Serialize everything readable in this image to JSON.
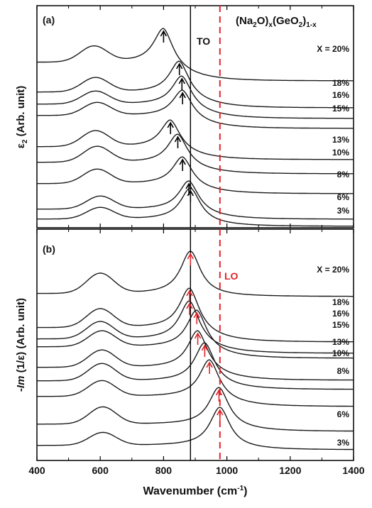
{
  "chart_data": [
    {
      "panel": "(a)",
      "type": "line",
      "title": "(Na2O)x(GeO2)1-x",
      "ylabel": "ε2 (Arb. unit)",
      "xlabel": "Wavenumber (cm-1)",
      "xlim": [
        400,
        1400
      ],
      "yticks": "none",
      "reference_lines": [
        {
          "label": "TO",
          "x": 885,
          "color": "#000000",
          "style": "solid"
        },
        {
          "label": "",
          "x": 978,
          "color": "#e0252b",
          "style": "dashed"
        }
      ],
      "series": [
        {
          "name": "X = 20%",
          "peak_x": 800,
          "shoulder_x": 580
        },
        {
          "name": "18%",
          "peak_x": 850,
          "shoulder_x": 585
        },
        {
          "name": "16%",
          "peak_x": 858,
          "shoulder_x": 585
        },
        {
          "name": "15%",
          "peak_x": 860,
          "shoulder_x": 590
        },
        {
          "name": "13%",
          "peak_x": 822,
          "shoulder_x": 585
        },
        {
          "name": "10%",
          "peak_x": 845,
          "shoulder_x": 590
        },
        {
          "name": "8%",
          "peak_x": 860,
          "shoulder_x": 590
        },
        {
          "name": "6%",
          "peak_x": 880,
          "shoulder_x": 600
        },
        {
          "name": "3%",
          "peak_x": 885,
          "shoulder_x": 600
        }
      ],
      "peak_arrow_color": "#000000"
    },
    {
      "panel": "(b)",
      "type": "line",
      "ylabel": "-Im (1/ε) (Arb. unit)",
      "xlabel": "Wavenumber (cm-1)",
      "xlim": [
        400,
        1400
      ],
      "xticks": [
        400,
        600,
        800,
        1000,
        1200,
        1400
      ],
      "yticks": "none",
      "reference_lines": [
        {
          "label": "",
          "x": 885,
          "color": "#000000",
          "style": "solid"
        },
        {
          "label": "LO",
          "x": 978,
          "color": "#e0252b",
          "style": "dashed"
        }
      ],
      "series": [
        {
          "name": "X = 20%",
          "peak_x": 885,
          "shoulder_x": 600
        },
        {
          "name": "18%",
          "peak_x": 882,
          "shoulder_x": 600
        },
        {
          "name": "16%",
          "peak_x": 882,
          "shoulder_x": 600
        },
        {
          "name": "15%",
          "peak_x": 905,
          "shoulder_x": 605
        },
        {
          "name": "13%",
          "peak_x": 908,
          "shoulder_x": 605
        },
        {
          "name": "10%",
          "peak_x": 930,
          "shoulder_x": 605
        },
        {
          "name": "8%",
          "peak_x": 945,
          "shoulder_x": 605
        },
        {
          "name": "6%",
          "peak_x": 975,
          "shoulder_x": 608
        },
        {
          "name": "3%",
          "peak_x": 978,
          "shoulder_x": 608
        }
      ],
      "peak_arrow_color": "#e0252b"
    }
  ],
  "figure_text": {
    "panel_a_label": "(a)",
    "panel_b_label": "(b)",
    "to_label": "TO",
    "lo_label": "LO",
    "ylabel_a_sym": "ε",
    "ylabel_a_sub": "2",
    "ylabel_a_rest": " (Arb. unit)",
    "ylabel_b_prefix": "-",
    "ylabel_b_im": "Im",
    "ylabel_b_rest": " (1/ε) (Arb. unit)",
    "xlabel_main": "Wavenumber (cm",
    "xlabel_sup": "-1",
    "xlabel_close": ")",
    "formula_p1": "(Na",
    "formula_s1": "2",
    "formula_p2": "O)",
    "formula_s2": "x",
    "formula_p3": "(GeO",
    "formula_s3": "2",
    "formula_p4": ")",
    "formula_s4": "1-x"
  },
  "colors": {
    "axis": "#000000",
    "curve": "#1a1a1a",
    "lo_line": "#e0252b",
    "arrow_b": "#e0252b"
  }
}
